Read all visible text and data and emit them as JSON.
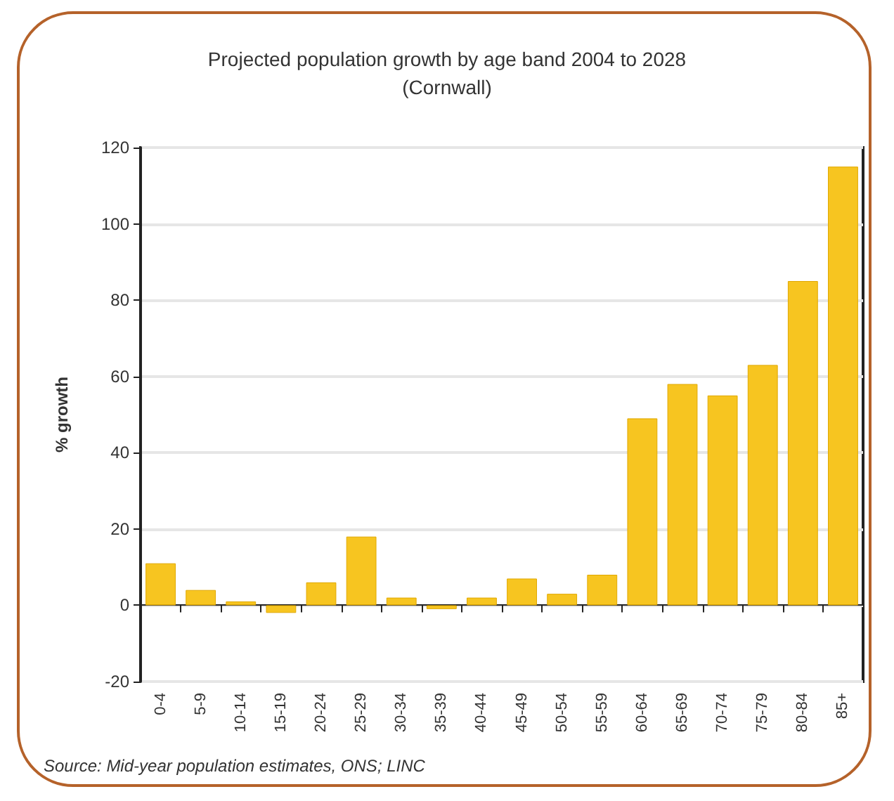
{
  "chart_data": {
    "type": "bar",
    "title": "Projected population growth by age band 2004 to 2028",
    "subtitle": "(Cornwall)",
    "ylabel": "% growth",
    "categories": [
      "0-4",
      "5-9",
      "10-14",
      "15-19",
      "20-24",
      "25-29",
      "30-34",
      "35-39",
      "40-44",
      "45-49",
      "50-54",
      "55-59",
      "60-64",
      "65-69",
      "70-74",
      "75-79",
      "80-84",
      "85+"
    ],
    "values": [
      11,
      4,
      1,
      -2,
      6,
      18,
      2,
      -1,
      2,
      7,
      3,
      8,
      49,
      58,
      55,
      63,
      85,
      115
    ],
    "color": "#f7c520",
    "ylim": [
      -20,
      120
    ],
    "yticks": [
      -20,
      0,
      20,
      40,
      60,
      80,
      100,
      120
    ],
    "grid": "y",
    "annotations": [
      "Source: Mid-year population estimates, ONS; LINC"
    ]
  }
}
